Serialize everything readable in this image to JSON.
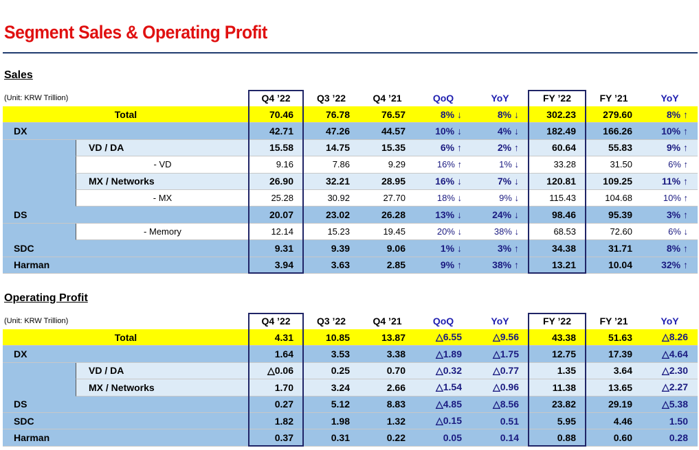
{
  "title": "Segment Sales & Operating Profit",
  "sections": [
    {
      "heading": "Sales",
      "unit": "(Unit: KRW Trillion)",
      "columns": [
        "Q4 ’22",
        "Q3 ’22",
        "Q4 ’21",
        "QoQ",
        "YoY",
        "FY ’22",
        "FY ’21",
        "YoY"
      ],
      "rows": [
        {
          "label": "Total",
          "cells": [
            "70.46",
            "76.78",
            "76.57",
            "8% ↓",
            "8% ↓",
            "302.23",
            "279.60",
            "8% ↑"
          ]
        },
        {
          "label": "DX",
          "cells": [
            "42.71",
            "47.26",
            "44.57",
            "10% ↓",
            "4% ↓",
            "182.49",
            "166.26",
            "10% ↑"
          ]
        },
        {
          "label": "VD / DA",
          "cells": [
            "15.58",
            "14.75",
            "15.35",
            "6% ↑",
            "2% ↑",
            "60.64",
            "55.83",
            "9% ↑"
          ]
        },
        {
          "label": "- VD",
          "cells": [
            "9.16",
            "7.86",
            "9.29",
            "16% ↑",
            "1% ↓",
            "33.28",
            "31.50",
            "6% ↑"
          ]
        },
        {
          "label": "MX / Networks",
          "cells": [
            "26.90",
            "32.21",
            "28.95",
            "16% ↓",
            "7% ↓",
            "120.81",
            "109.25",
            "11% ↑"
          ]
        },
        {
          "label": "- MX",
          "cells": [
            "25.28",
            "30.92",
            "27.70",
            "18% ↓",
            "9% ↓",
            "115.43",
            "104.68",
            "10% ↑"
          ]
        },
        {
          "label": "DS",
          "cells": [
            "20.07",
            "23.02",
            "26.28",
            "13% ↓",
            "24% ↓",
            "98.46",
            "95.39",
            "3% ↑"
          ]
        },
        {
          "label": "- Memory",
          "cells": [
            "12.14",
            "15.23",
            "19.45",
            "20% ↓",
            "38% ↓",
            "68.53",
            "72.60",
            "6% ↓"
          ]
        },
        {
          "label": "SDC",
          "cells": [
            "9.31",
            "9.39",
            "9.06",
            "1% ↓",
            "3% ↑",
            "34.38",
            "31.71",
            "8% ↑"
          ]
        },
        {
          "label": "Harman",
          "cells": [
            "3.94",
            "3.63",
            "2.85",
            "9% ↑",
            "38% ↑",
            "13.21",
            "10.04",
            "32% ↑"
          ]
        }
      ]
    },
    {
      "heading": "Operating Profit",
      "unit": "(Unit: KRW Trillion)",
      "columns": [
        "Q4 ’22",
        "Q3 ’22",
        "Q4 ’21",
        "QoQ",
        "YoY",
        "FY ’22",
        "FY ’21",
        "YoY"
      ],
      "rows": [
        {
          "label": "Total",
          "cells": [
            "4.31",
            "10.85",
            "13.87",
            "△6.55",
            "△9.56",
            "43.38",
            "51.63",
            "△8.26"
          ]
        },
        {
          "label": "DX",
          "cells": [
            "1.64",
            "3.53",
            "3.38",
            "△1.89",
            "△1.75",
            "12.75",
            "17.39",
            "△4.64"
          ]
        },
        {
          "label": "VD / DA",
          "cells": [
            "△0.06",
            "0.25",
            "0.70",
            "△0.32",
            "△0.77",
            "1.35",
            "3.64",
            "△2.30"
          ]
        },
        {
          "label": "MX / Networks",
          "cells": [
            "1.70",
            "3.24",
            "2.66",
            "△1.54",
            "△0.96",
            "11.38",
            "13.65",
            "△2.27"
          ]
        },
        {
          "label": "DS",
          "cells": [
            "0.27",
            "5.12",
            "8.83",
            "△4.85",
            "△8.56",
            "23.82",
            "29.19",
            "△5.38"
          ]
        },
        {
          "label": "SDC",
          "cells": [
            "1.82",
            "1.98",
            "1.32",
            "△0.15",
            "0.51",
            "5.95",
            "4.46",
            "1.50"
          ]
        },
        {
          "label": "Harman",
          "cells": [
            "0.37",
            "0.31",
            "0.22",
            "0.05",
            "0.14",
            "0.88",
            "0.60",
            "0.28"
          ]
        }
      ]
    }
  ]
}
